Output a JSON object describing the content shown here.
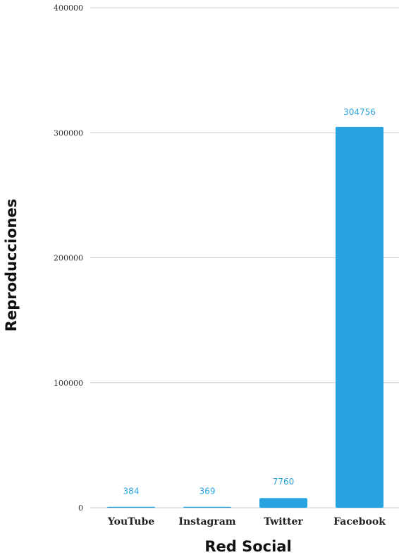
{
  "chart_data": {
    "type": "bar",
    "categories": [
      "YouTube",
      "Instagram",
      "Twitter",
      "Facebook"
    ],
    "values": [
      384,
      369,
      7760,
      304756
    ],
    "data_labels": [
      "384",
      "369",
      "7760",
      "304756"
    ],
    "xlabel": "Red Social",
    "ylabel": "Reproducciones",
    "ylim": [
      0,
      400000
    ],
    "yticks": [
      0,
      100000,
      200000,
      300000,
      400000
    ],
    "ytick_labels": [
      "0",
      "100000",
      "200000",
      "300000",
      "400000"
    ],
    "grid": true,
    "legend": "none",
    "bar_color": "#29a3e0",
    "label_color": "#29a3e0",
    "grid_color": "#cccccc"
  }
}
